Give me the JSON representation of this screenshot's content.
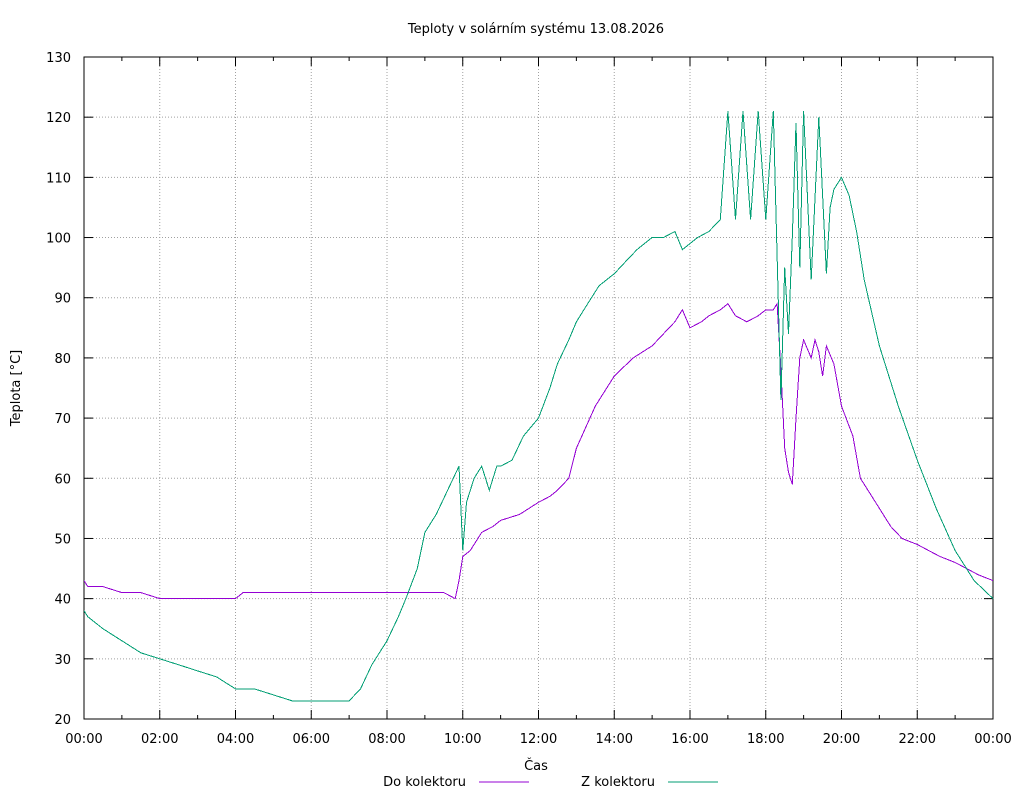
{
  "chart_data": {
    "type": "line",
    "title": "Teploty v solárním systému 13.08.2026",
    "xlabel": "Čas",
    "ylabel": "Teplota [°C]",
    "x_unit": "hours",
    "xlim": [
      0,
      24
    ],
    "ylim": [
      20,
      130
    ],
    "x_ticks": [
      {
        "value": 0,
        "label": "00:00"
      },
      {
        "value": 2,
        "label": "02:00"
      },
      {
        "value": 4,
        "label": "04:00"
      },
      {
        "value": 6,
        "label": "06:00"
      },
      {
        "value": 8,
        "label": "08:00"
      },
      {
        "value": 10,
        "label": "10:00"
      },
      {
        "value": 12,
        "label": "12:00"
      },
      {
        "value": 14,
        "label": "14:00"
      },
      {
        "value": 16,
        "label": "16:00"
      },
      {
        "value": 18,
        "label": "18:00"
      },
      {
        "value": 20,
        "label": "20:00"
      },
      {
        "value": 22,
        "label": "22:00"
      },
      {
        "value": 24,
        "label": "00:00"
      }
    ],
    "y_ticks": [
      20,
      30,
      40,
      50,
      60,
      70,
      80,
      90,
      100,
      110,
      120,
      130
    ],
    "grid": true,
    "legend_position": "bottom",
    "series": [
      {
        "name": "Do kolektoru",
        "color": "#9400d3",
        "x": [
          0,
          0.1,
          0.5,
          1.0,
          1.5,
          2.0,
          3.0,
          4.0,
          4.2,
          5.0,
          6.0,
          7.0,
          8.0,
          9.0,
          9.5,
          9.8,
          9.9,
          10.0,
          10.2,
          10.5,
          10.8,
          11.0,
          11.5,
          12.0,
          12.3,
          12.5,
          12.8,
          13.0,
          13.5,
          14.0,
          14.5,
          15.0,
          15.3,
          15.6,
          15.7,
          15.8,
          16.0,
          16.3,
          16.5,
          16.8,
          17.0,
          17.2,
          17.5,
          17.8,
          18.0,
          18.2,
          18.3,
          18.4,
          18.5,
          18.6,
          18.7,
          18.8,
          18.9,
          19.0,
          19.2,
          19.3,
          19.4,
          19.5,
          19.6,
          19.8,
          20.0,
          20.3,
          20.5,
          20.8,
          21.0,
          21.3,
          21.6,
          22.0,
          22.3,
          22.6,
          23.0,
          23.3,
          23.6,
          24.0
        ],
        "values": [
          43,
          42,
          42,
          41,
          41,
          40,
          40,
          40,
          41,
          41,
          41,
          41,
          41,
          41,
          41,
          40,
          43,
          47,
          48,
          51,
          52,
          53,
          54,
          56,
          57,
          58,
          60,
          65,
          72,
          77,
          80,
          82,
          84,
          86,
          87,
          88,
          85,
          86,
          87,
          88,
          89,
          87,
          86,
          87,
          88,
          88,
          89,
          78,
          65,
          61,
          59,
          70,
          80,
          83,
          80,
          83,
          81,
          77,
          82,
          79,
          72,
          67,
          60,
          57,
          55,
          52,
          50,
          49,
          48,
          47,
          46,
          45,
          44,
          43
        ]
      },
      {
        "name": "Z kolektoru",
        "color": "#009e73",
        "x": [
          0,
          0.1,
          0.5,
          1.0,
          1.5,
          2.0,
          2.5,
          3.0,
          3.5,
          4.0,
          4.5,
          5.0,
          5.5,
          6.0,
          6.5,
          7.0,
          7.3,
          7.6,
          8.0,
          8.3,
          8.5,
          8.8,
          9.0,
          9.3,
          9.6,
          9.9,
          10.0,
          10.1,
          10.3,
          10.5,
          10.7,
          10.9,
          11.0,
          11.3,
          11.6,
          12.0,
          12.3,
          12.5,
          12.8,
          13.0,
          13.3,
          13.6,
          14.0,
          14.3,
          14.6,
          15.0,
          15.3,
          15.6,
          15.8,
          16.0,
          16.2,
          16.5,
          16.8,
          17.0,
          17.2,
          17.4,
          17.6,
          17.8,
          18.0,
          18.2,
          18.4,
          18.5,
          18.6,
          18.7,
          18.8,
          18.9,
          19.0,
          19.2,
          19.4,
          19.6,
          19.7,
          19.8,
          20.0,
          20.2,
          20.4,
          20.6,
          21.0,
          21.5,
          22.0,
          22.5,
          23.0,
          23.5,
          24.0
        ],
        "values": [
          38,
          37,
          35,
          33,
          31,
          30,
          29,
          28,
          27,
          25,
          25,
          24,
          23,
          23,
          23,
          23,
          25,
          29,
          33,
          37,
          40,
          45,
          51,
          54,
          58,
          62,
          48,
          56,
          60,
          62,
          58,
          62,
          62,
          63,
          67,
          70,
          75,
          79,
          83,
          86,
          89,
          92,
          94,
          96,
          98,
          100,
          100,
          101,
          98,
          99,
          100,
          101,
          103,
          121,
          103,
          121,
          103,
          121,
          103,
          121,
          73,
          95,
          84,
          100,
          119,
          95,
          121,
          93,
          120,
          94,
          105,
          108,
          110,
          107,
          101,
          93,
          82,
          72,
          63,
          55,
          48,
          43,
          40
        ]
      }
    ]
  },
  "legend": {
    "series_0_label": "Do kolektoru",
    "series_1_label": "Z kolektoru"
  }
}
